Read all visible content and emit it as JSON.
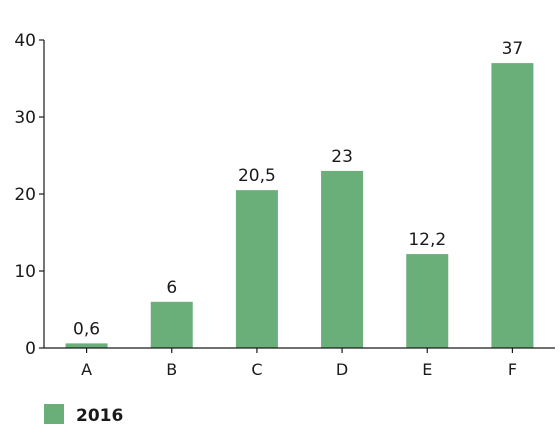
{
  "chart_data": {
    "type": "bar",
    "categories": [
      "A",
      "B",
      "C",
      "D",
      "E",
      "F"
    ],
    "series": [
      {
        "name": "2016",
        "values": [
          0.6,
          6,
          20.5,
          23,
          12.2,
          37
        ],
        "value_labels": [
          "0,6",
          "6",
          "20,5",
          "23",
          "12,2",
          "37"
        ]
      }
    ],
    "ylim": [
      0,
      40
    ],
    "yticks": [
      0,
      10,
      20,
      30,
      40
    ],
    "grid": false,
    "legend": "bottom-left",
    "colors": {
      "bar": "#6aaf7a",
      "axis": "#1a1a1a"
    }
  }
}
